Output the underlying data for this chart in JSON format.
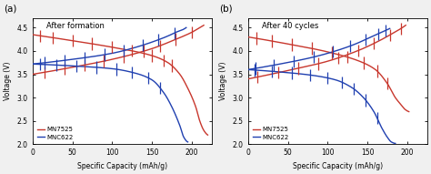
{
  "panel_a_title": "After formation",
  "panel_b_title": "After 40 cycles",
  "xlabel": "Specific Capacity (mAh/g)",
  "ylabel": "Voltage (V)",
  "ylim": [
    2.0,
    4.7
  ],
  "xlim": [
    0,
    225
  ],
  "yticks": [
    2.0,
    2.5,
    3.0,
    3.5,
    4.0,
    4.5
  ],
  "xticks": [
    0,
    50,
    100,
    150,
    200
  ],
  "legend_labels": [
    "MN7525",
    "MNC622"
  ],
  "color_red": "#c8372d",
  "color_blue": "#2040b0",
  "bg_color": "#f0f0f0",
  "plot_bg": "#ffffff",
  "label_a": "(a)",
  "label_b": "(b)",
  "panel_a": {
    "mn7525_discharge": {
      "x_main": [
        0,
        50,
        100,
        150,
        170,
        185,
        195,
        205,
        210,
        215,
        220
      ],
      "v_main": [
        4.35,
        4.22,
        4.08,
        3.9,
        3.75,
        3.5,
        3.2,
        2.8,
        2.5,
        2.3,
        2.2
      ],
      "x_end": 220,
      "n_pulses": 9,
      "pulse_positions": [
        10,
        25,
        50,
        75,
        100,
        125,
        150,
        165,
        175
      ],
      "pulse_amp": 0.13
    },
    "mn7525_charge": {
      "x_main": [
        0,
        50,
        100,
        150,
        180,
        200,
        210,
        215
      ],
      "v_main": [
        3.5,
        3.65,
        3.82,
        4.05,
        4.25,
        4.4,
        4.5,
        4.55
      ],
      "n_pulses": 9,
      "pulse_positions": [
        15,
        40,
        65,
        90,
        115,
        140,
        160,
        180,
        200
      ],
      "pulse_amp": 0.13
    },
    "mnc622_discharge": {
      "x_main": [
        0,
        50,
        100,
        130,
        150,
        165,
        175,
        185,
        190,
        195
      ],
      "v_main": [
        3.72,
        3.68,
        3.62,
        3.52,
        3.38,
        3.1,
        2.8,
        2.4,
        2.15,
        2.05
      ],
      "n_pulses": 8,
      "pulse_positions": [
        10,
        30,
        55,
        80,
        105,
        125,
        145,
        160
      ],
      "pulse_amp": 0.13
    },
    "mnc622_charge": {
      "x_main": [
        0,
        50,
        100,
        130,
        155,
        170,
        180,
        188,
        193
      ],
      "v_main": [
        3.72,
        3.82,
        3.95,
        4.08,
        4.22,
        4.32,
        4.4,
        4.45,
        4.5
      ],
      "n_pulses": 8,
      "pulse_positions": [
        15,
        40,
        65,
        90,
        115,
        138,
        158,
        178
      ],
      "pulse_amp": 0.13
    }
  },
  "panel_b": {
    "mn7525_discharge": {
      "x_main": [
        0,
        50,
        100,
        140,
        160,
        175,
        185,
        192,
        197,
        202
      ],
      "v_main": [
        4.3,
        4.15,
        3.98,
        3.78,
        3.6,
        3.3,
        3.0,
        2.85,
        2.75,
        2.7
      ],
      "n_pulses": 9,
      "pulse_positions": [
        10,
        30,
        55,
        80,
        105,
        125,
        145,
        162,
        175
      ],
      "pulse_amp": 0.13
    },
    "mn7525_charge": {
      "x_main": [
        0,
        50,
        100,
        140,
        165,
        182,
        192,
        198
      ],
      "v_main": [
        3.4,
        3.58,
        3.78,
        4.02,
        4.22,
        4.38,
        4.48,
        4.55
      ],
      "n_pulses": 9,
      "pulse_positions": [
        12,
        38,
        63,
        88,
        113,
        138,
        158,
        178,
        192
      ],
      "pulse_amp": 0.13
    },
    "mnc622_discharge": {
      "x_main": [
        0,
        40,
        80,
        110,
        130,
        145,
        158,
        168,
        175,
        180,
        185
      ],
      "v_main": [
        3.6,
        3.55,
        3.48,
        3.38,
        3.22,
        3.0,
        2.7,
        2.35,
        2.15,
        2.05,
        2.02
      ],
      "n_pulses": 9,
      "pulse_positions": [
        8,
        30,
        55,
        78,
        100,
        118,
        133,
        148,
        162
      ],
      "pulse_amp": 0.13
    },
    "mnc622_charge": {
      "x_main": [
        0,
        40,
        80,
        110,
        135,
        152,
        165,
        173,
        178
      ],
      "v_main": [
        3.6,
        3.72,
        3.86,
        4.0,
        4.15,
        4.28,
        4.38,
        4.44,
        4.48
      ],
      "n_pulses": 9,
      "pulse_positions": [
        10,
        32,
        57,
        82,
        107,
        128,
        148,
        163,
        173
      ],
      "pulse_amp": 0.13
    }
  }
}
